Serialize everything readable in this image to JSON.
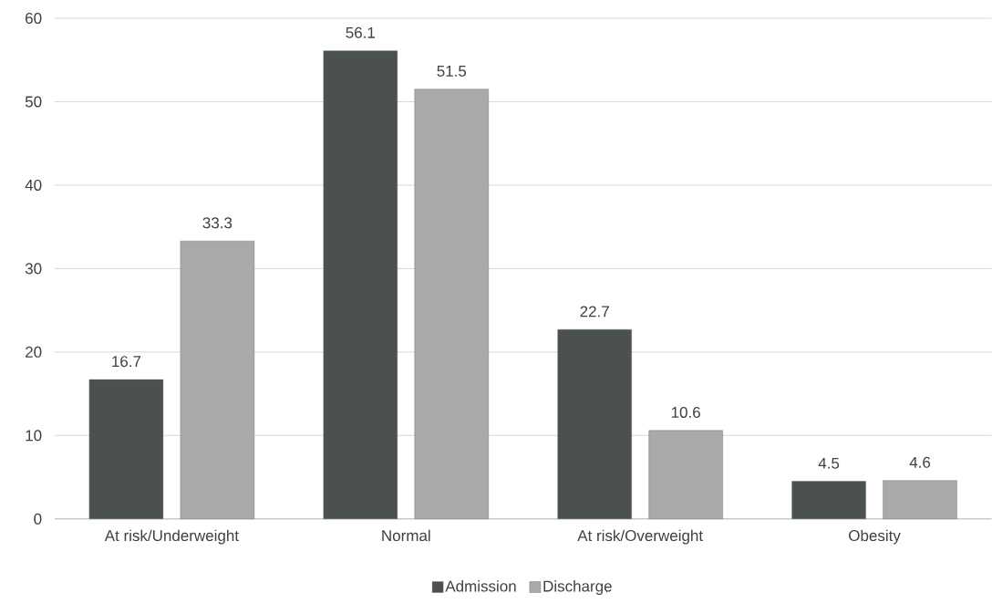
{
  "chart_data": {
    "type": "bar",
    "categories": [
      "At risk/Underweight",
      "Normal",
      "At risk/Overweight",
      "Obesity"
    ],
    "series": [
      {
        "name": "Admission",
        "color": "#4b5051",
        "values": [
          16.7,
          56.1,
          22.7,
          4.5
        ]
      },
      {
        "name": "Discharge",
        "color": "#a7a9aa",
        "values": [
          33.3,
          51.5,
          10.6,
          4.6
        ]
      }
    ],
    "ylim": [
      0,
      60
    ],
    "yticks": [
      0,
      10,
      20,
      30,
      40,
      50,
      60
    ],
    "grid": "y",
    "legend": "bottom",
    "data_labels": true
  }
}
